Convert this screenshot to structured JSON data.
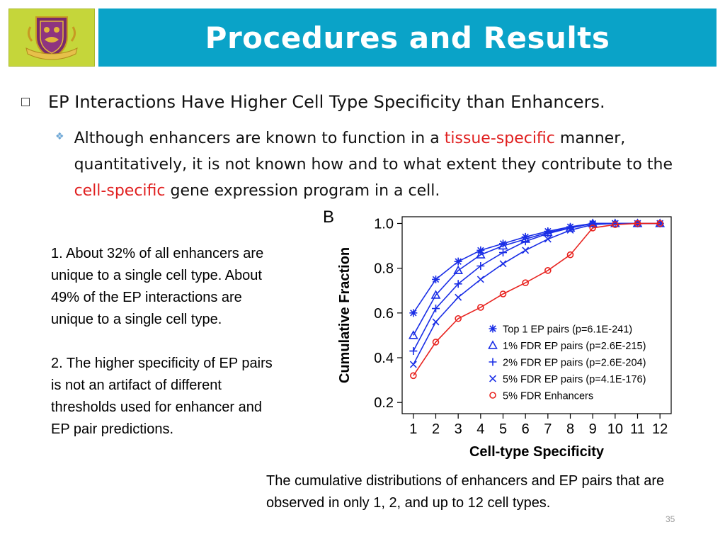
{
  "header": {
    "title": "Procedures and Results",
    "logo_icon": "university-crest-icon"
  },
  "bullets": {
    "main": "EP Interactions Have Higher Cell Type Specificity than Enhancers.",
    "sub": {
      "part1": "Although enhancers are known to function in a ",
      "highlight1": "tissue-specific",
      "part2": " manner, quantitatively, it is not known how and to what extent they contribute to the ",
      "highlight2": "cell-specific",
      "part3": " gene expression program in a cell."
    }
  },
  "notes": {
    "note1": "1. About 32% of all enhancers are unique to a single cell type. About 49% of the EP interactions are unique to a single cell type.",
    "note2": "2. The higher specificity of EP pairs is not an artifact of different thresholds used for enhancer and EP pair predictions."
  },
  "caption": "The cumulative distributions of enhancers and EP pairs that are observed in only 1, 2, and up to 12 cell types.",
  "page_number": "35",
  "colors": {
    "title_bar": "#0aa3c8",
    "logo_bg": "#c5d63a",
    "highlight": "#e01f1f",
    "series_blue": "#1a2ee6",
    "series_red": "#e8231f"
  },
  "chart_data": {
    "type": "line",
    "panel_label": "B",
    "xlabel": "Cell-type Specificity",
    "ylabel": "Cumulative Fraction",
    "x": [
      1,
      2,
      3,
      4,
      5,
      6,
      7,
      8,
      9,
      10,
      11,
      12
    ],
    "x_tick_labels": [
      "1",
      "2",
      "3",
      "4",
      "5",
      "6",
      "7",
      "8",
      "9",
      "10",
      "11",
      "12"
    ],
    "y_ticks": [
      0.2,
      0.4,
      0.6,
      0.8,
      1.0
    ],
    "y_tick_labels": [
      "0.2",
      "0.4",
      "0.6",
      "0.8",
      "1.0"
    ],
    "xlim": [
      0.5,
      12.5
    ],
    "ylim": [
      0.15,
      1.03
    ],
    "legend_position": "bottom-right",
    "series": [
      {
        "name": "Top 1 EP pairs (p=6.1E-241)",
        "marker": "asterisk",
        "color": "#1a2ee6",
        "values": [
          0.6,
          0.75,
          0.83,
          0.88,
          0.91,
          0.94,
          0.965,
          0.985,
          1.0,
          1.0,
          1.0,
          1.0
        ]
      },
      {
        "name": "1% FDR  EP pairs (p=2.6E-215)",
        "marker": "triangle",
        "color": "#1a2ee6",
        "values": [
          0.5,
          0.68,
          0.79,
          0.86,
          0.9,
          0.93,
          0.96,
          0.98,
          1.0,
          1.0,
          1.0,
          1.0
        ]
      },
      {
        "name": "2% FDR EP pairs (p=2.6E-204)",
        "marker": "plus",
        "color": "#1a2ee6",
        "values": [
          0.43,
          0.62,
          0.73,
          0.81,
          0.87,
          0.92,
          0.955,
          0.98,
          1.0,
          1.0,
          1.0,
          1.0
        ]
      },
      {
        "name": "5% FDR EP pairs (p=4.1E-176)",
        "marker": "x",
        "color": "#1a2ee6",
        "values": [
          0.37,
          0.56,
          0.67,
          0.75,
          0.82,
          0.88,
          0.93,
          0.97,
          0.995,
          1.0,
          1.0,
          1.0
        ]
      },
      {
        "name": "5% FDR Enhancers",
        "marker": "circle",
        "color": "#e8231f",
        "values": [
          0.32,
          0.47,
          0.575,
          0.625,
          0.685,
          0.735,
          0.79,
          0.86,
          0.98,
          0.995,
          1.0,
          1.0
        ]
      }
    ]
  }
}
